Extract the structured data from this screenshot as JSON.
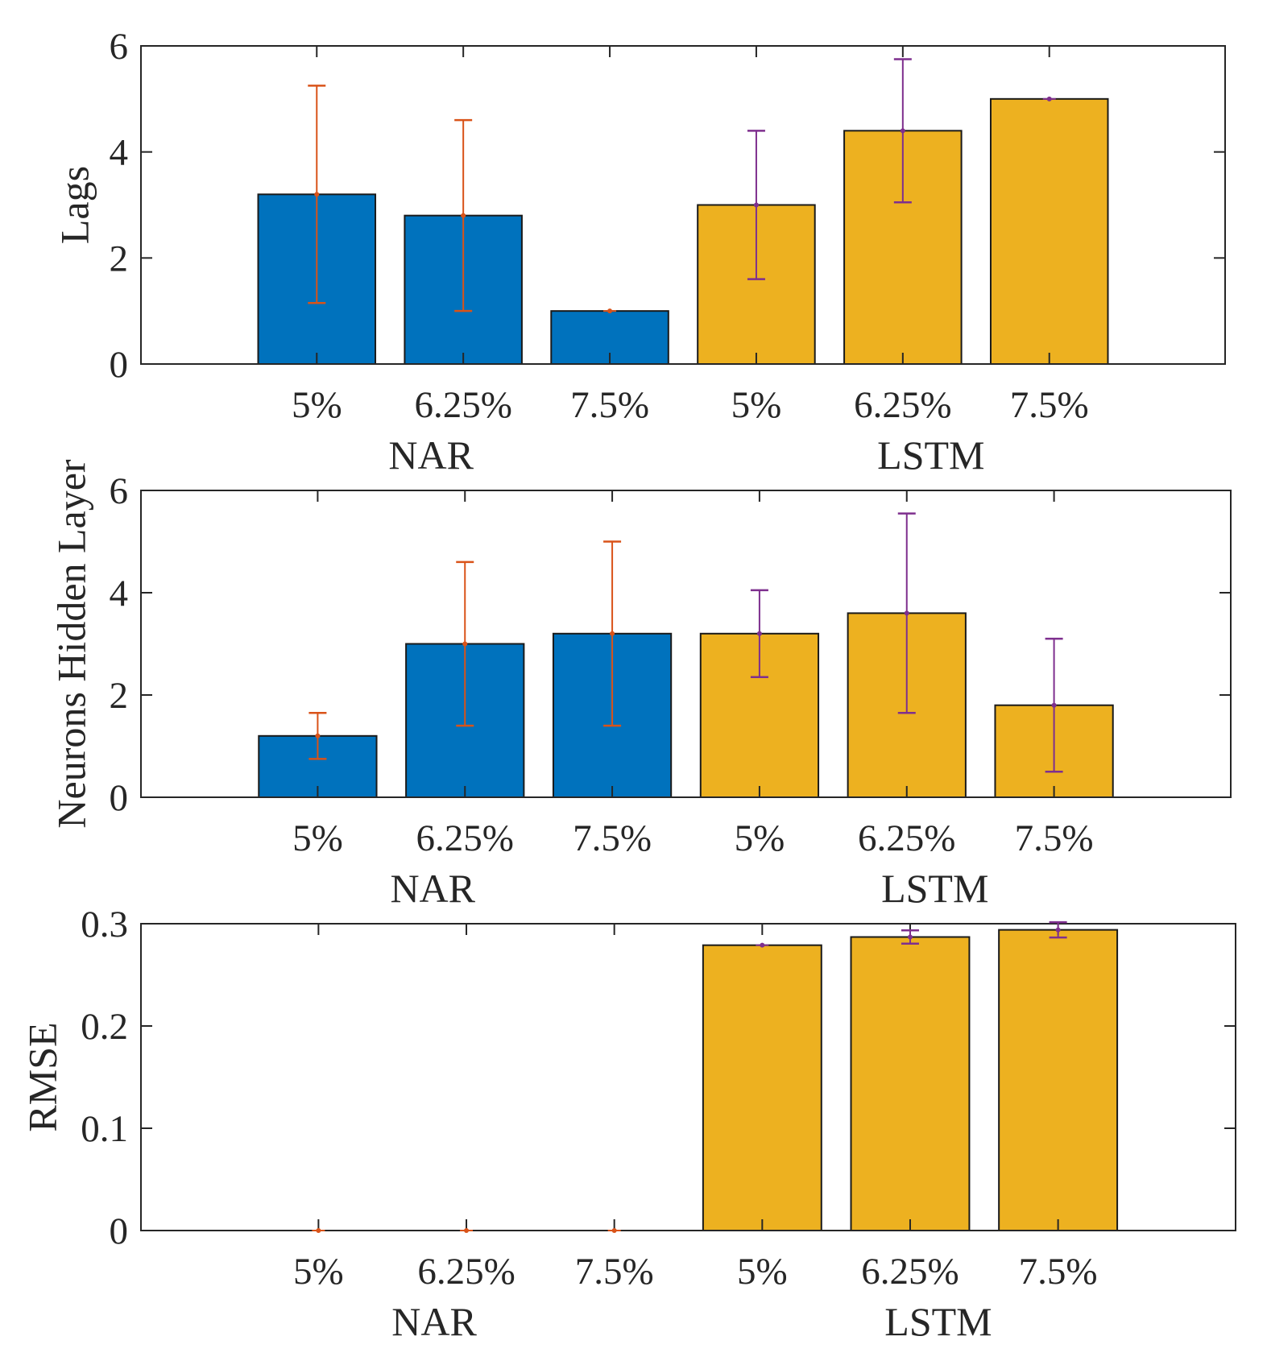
{
  "chart_data": [
    {
      "type": "bar",
      "ylabel": "Lags",
      "ylim": [
        0,
        6
      ],
      "yticks": [
        "0",
        "2",
        "4",
        "6"
      ],
      "ytick_values": [
        0,
        2,
        4,
        6
      ],
      "categories": [
        "5%",
        "6.25%",
        "7.5%",
        "5%",
        "6.25%",
        "7.5%"
      ],
      "groups": [
        {
          "name": "NAR",
          "indices": [
            0,
            1,
            2
          ]
        },
        {
          "name": "LSTM",
          "indices": [
            3,
            4,
            5
          ]
        }
      ],
      "values": [
        3.2,
        2.8,
        1.0,
        3.0,
        4.4,
        5.0
      ],
      "error_lower": [
        2.05,
        1.8,
        0,
        1.4,
        1.35,
        0
      ],
      "error_upper": [
        2.05,
        1.8,
        0,
        1.4,
        1.35,
        0
      ],
      "xlim": [
        -0.2,
        7.2
      ],
      "grid": false
    },
    {
      "type": "bar",
      "ylabel": "Neurons Hidden Layer",
      "ylim": [
        0,
        6
      ],
      "yticks": [
        "0",
        "2",
        "4",
        "6"
      ],
      "ytick_values": [
        0,
        2,
        4,
        6
      ],
      "categories": [
        "5%",
        "6.25%",
        "7.5%",
        "5%",
        "6.25%",
        "7.5%"
      ],
      "groups": [
        {
          "name": "NAR",
          "indices": [
            0,
            1,
            2
          ]
        },
        {
          "name": "LSTM",
          "indices": [
            3,
            4,
            5
          ]
        }
      ],
      "values": [
        1.2,
        3.0,
        3.2,
        3.2,
        3.6,
        1.8
      ],
      "error_lower": [
        0.45,
        1.6,
        1.8,
        0.85,
        1.95,
        1.3
      ],
      "error_upper": [
        0.45,
        1.6,
        1.8,
        0.85,
        1.95,
        1.3
      ],
      "xlim": [
        -0.2,
        7.2
      ],
      "grid": false
    },
    {
      "type": "bar",
      "ylabel": "RMSE",
      "ylim": [
        0,
        0.3
      ],
      "yticks": [
        "0",
        "0.1",
        "0.2",
        "0.3"
      ],
      "ytick_values": [
        0,
        0.1,
        0.2,
        0.3
      ],
      "categories": [
        "5%",
        "6.25%",
        "7.5%",
        "5%",
        "6.25%",
        "7.5%"
      ],
      "groups": [
        {
          "name": "NAR",
          "indices": [
            0,
            1,
            2
          ]
        },
        {
          "name": "LSTM",
          "indices": [
            3,
            4,
            5
          ]
        }
      ],
      "values": [
        0,
        0,
        0,
        0.279,
        0.287,
        0.294
      ],
      "error_lower": [
        0,
        0,
        0,
        0,
        0.0065,
        0.0075
      ],
      "error_upper": [
        0,
        0,
        0,
        0,
        0.0065,
        0.0075
      ],
      "xlim": [
        -0.2,
        7.2
      ],
      "grid": false
    }
  ],
  "colors": {
    "NAR_bar": "#0072BD",
    "LSTM_bar": "#EDB120",
    "NAR_error": "#D95319",
    "LSTM_error": "#7E2F8E",
    "axis": "#262626"
  }
}
